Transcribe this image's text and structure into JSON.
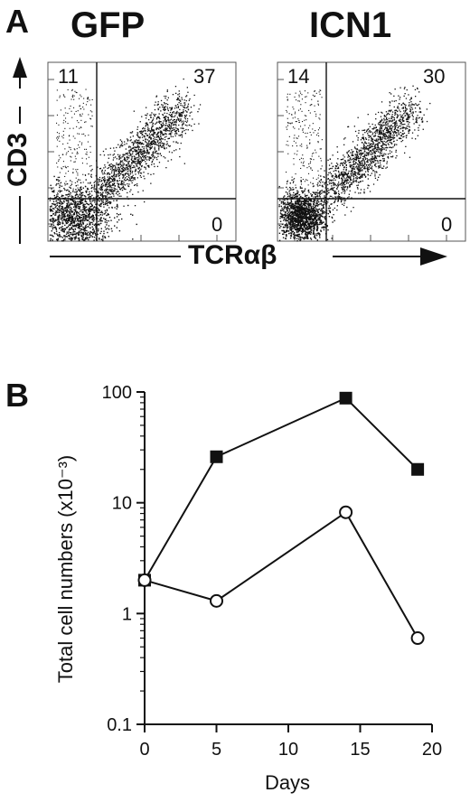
{
  "panel_a": {
    "letter": "A",
    "y_axis": "CD3",
    "x_axis": "TCRαβ",
    "plots": [
      {
        "title": "GFP",
        "quadrants": {
          "upper_left": "11",
          "upper_right": "37",
          "lower_right": "0"
        }
      },
      {
        "title": "ICN1",
        "quadrants": {
          "upper_left": "14",
          "upper_right": "30",
          "lower_right": "0"
        }
      }
    ]
  },
  "panel_b": {
    "letter": "B"
  },
  "chart_data": {
    "type": "line",
    "xlabel": "Days",
    "ylabel": "Total cell numbers (x10⁻³)",
    "xlim": [
      0,
      20
    ],
    "ylim": [
      0.1,
      100
    ],
    "y_scale": "log",
    "x_ticks": [
      "0",
      "5",
      "10",
      "15",
      "20"
    ],
    "y_ticks": [
      "0.1",
      "1",
      "10",
      "100"
    ],
    "series": [
      {
        "marker": "filled-square",
        "x": [
          0,
          5,
          14,
          19
        ],
        "values": [
          2,
          26,
          88,
          20
        ]
      },
      {
        "marker": "open-circle",
        "x": [
          0,
          5,
          14,
          19
        ],
        "values": [
          2,
          1.3,
          8.2,
          0.6
        ]
      }
    ]
  }
}
